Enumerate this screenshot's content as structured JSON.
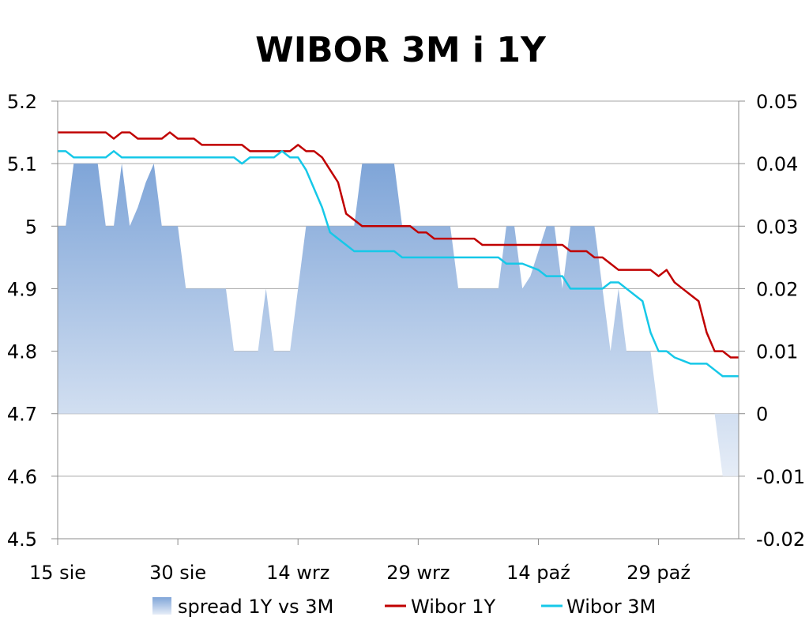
{
  "chart_data": {
    "type": "line",
    "title": "WIBOR 3M i 1Y",
    "x_axis": {
      "ticks": [
        "15 sie",
        "30 sie",
        "14 wrz",
        "29 wrz",
        "14 paź",
        "29 paź"
      ],
      "range": [
        "15 sie",
        "8 lis"
      ]
    },
    "y_left": {
      "min": 4.5,
      "max": 5.2,
      "step": 0.1,
      "ticks": [
        "5.2",
        "5.1",
        "5",
        "4.9",
        "4.8",
        "4.7",
        "4.6",
        "4.5"
      ]
    },
    "y_right": {
      "min": -0.02,
      "max": 0.05,
      "step": 0.01,
      "ticks": [
        "0.05",
        "0.04",
        "0.03",
        "0.02",
        "0.01",
        "0",
        "-0.01",
        "-0.02"
      ]
    },
    "grid": true,
    "legend_position": "bottom",
    "legend": {
      "spread_label": "spread 1Y vs 3M",
      "wibor1y_label": "Wibor 1Y",
      "wibor3m_label": "Wibor 3M"
    },
    "colors": {
      "wibor1y": "#c00000",
      "wibor3m": "#16c8e8",
      "spread_top": "#7fa5d8",
      "spread_bottom": "#e6edf7",
      "grid": "#a6a6a6"
    },
    "series": [
      {
        "name": "Wibor 1Y",
        "axis": "left",
        "x_day": [
          0,
          1,
          2,
          3,
          4,
          5,
          6,
          7,
          8,
          9,
          10,
          11,
          12,
          13,
          14,
          15,
          16,
          17,
          18,
          19,
          20,
          21,
          22,
          23,
          24,
          25,
          26,
          27,
          28,
          29,
          30,
          31,
          32,
          33,
          34,
          35,
          36,
          37,
          38,
          39,
          40,
          41,
          42,
          43,
          44,
          45,
          46,
          47,
          48,
          49,
          50,
          51,
          52,
          53,
          54,
          55,
          56,
          57,
          58,
          59,
          60,
          61,
          62,
          63,
          64,
          65,
          66,
          67,
          68,
          69,
          70,
          71,
          72,
          73,
          74,
          75,
          76,
          77,
          78,
          79,
          80,
          81,
          82,
          83,
          84,
          85
        ],
        "values": [
          5.15,
          5.15,
          5.15,
          5.15,
          5.15,
          5.15,
          5.15,
          5.14,
          5.15,
          5.15,
          5.14,
          5.14,
          5.14,
          5.14,
          5.15,
          5.14,
          5.14,
          5.14,
          5.13,
          5.13,
          5.13,
          5.13,
          5.13,
          5.13,
          5.12,
          5.12,
          5.12,
          5.12,
          5.12,
          5.12,
          5.13,
          5.12,
          5.12,
          5.11,
          5.09,
          5.07,
          5.02,
          5.01,
          5.0,
          5.0,
          5.0,
          5.0,
          5.0,
          5.0,
          5.0,
          4.99,
          4.99,
          4.98,
          4.98,
          4.98,
          4.98,
          4.98,
          4.98,
          4.97,
          4.97,
          4.97,
          4.97,
          4.97,
          4.97,
          4.97,
          4.97,
          4.97,
          4.97,
          4.97,
          4.96,
          4.96,
          4.96,
          4.95,
          4.95,
          4.94,
          4.93,
          4.93,
          4.93,
          4.93,
          4.93,
          4.92,
          4.93,
          4.91,
          4.9,
          4.89,
          4.88,
          4.83,
          4.8,
          4.8,
          4.79,
          4.79
        ]
      },
      {
        "name": "Wibor 3M",
        "axis": "left",
        "x_day": [
          0,
          1,
          2,
          3,
          4,
          5,
          6,
          7,
          8,
          9,
          10,
          11,
          12,
          13,
          14,
          15,
          16,
          17,
          18,
          19,
          20,
          21,
          22,
          23,
          24,
          25,
          26,
          27,
          28,
          29,
          30,
          31,
          32,
          33,
          34,
          35,
          36,
          37,
          38,
          39,
          40,
          41,
          42,
          43,
          44,
          45,
          46,
          47,
          48,
          49,
          50,
          51,
          52,
          53,
          54,
          55,
          56,
          57,
          58,
          59,
          60,
          61,
          62,
          63,
          64,
          65,
          66,
          67,
          68,
          69,
          70,
          71,
          72,
          73,
          74,
          75,
          76,
          77,
          78,
          79,
          80,
          81,
          82,
          83,
          84,
          85
        ],
        "values": [
          5.12,
          5.12,
          5.11,
          5.11,
          5.11,
          5.11,
          5.11,
          5.12,
          5.11,
          5.11,
          5.11,
          5.11,
          5.11,
          5.11,
          5.11,
          5.11,
          5.11,
          5.11,
          5.11,
          5.11,
          5.11,
          5.11,
          5.11,
          5.1,
          5.11,
          5.11,
          5.11,
          5.11,
          5.12,
          5.11,
          5.11,
          5.09,
          5.06,
          5.03,
          4.99,
          4.98,
          4.97,
          4.96,
          4.96,
          4.96,
          4.96,
          4.96,
          4.96,
          4.95,
          4.95,
          4.95,
          4.95,
          4.95,
          4.95,
          4.95,
          4.95,
          4.95,
          4.95,
          4.95,
          4.95,
          4.95,
          4.94,
          4.94,
          4.94,
          4.935,
          4.93,
          4.92,
          4.92,
          4.92,
          4.9,
          4.9,
          4.9,
          4.9,
          4.9,
          4.91,
          4.91,
          4.9,
          4.89,
          4.88,
          4.83,
          4.8,
          4.8,
          4.79,
          4.785,
          4.78,
          4.78,
          4.78,
          4.77,
          4.76,
          4.76,
          4.76
        ]
      },
      {
        "name": "spread 1Y vs 3M",
        "axis": "right",
        "type": "area",
        "x_day": [
          0,
          1,
          2,
          3,
          4,
          5,
          6,
          7,
          8,
          9,
          10,
          11,
          12,
          13,
          14,
          15,
          16,
          17,
          18,
          19,
          20,
          21,
          22,
          23,
          24,
          25,
          26,
          27,
          28,
          29,
          30,
          31,
          32,
          33,
          34,
          35,
          36,
          37,
          38,
          39,
          40,
          41,
          42,
          43,
          44,
          45,
          46,
          47,
          48,
          49,
          50,
          51,
          52,
          53,
          54,
          55,
          56,
          57,
          58,
          59,
          60,
          61,
          62,
          63,
          64,
          65,
          66,
          67,
          68,
          69,
          70,
          71,
          72,
          73,
          74,
          75,
          76,
          77,
          78,
          79,
          80,
          81,
          82,
          83,
          84,
          85
        ],
        "values": [
          0.03,
          0.03,
          0.04,
          0.04,
          0.04,
          0.04,
          0.03,
          0.03,
          0.04,
          0.03,
          0.033,
          0.037,
          0.04,
          0.03,
          0.03,
          0.03,
          0.02,
          0.02,
          0.02,
          0.02,
          0.02,
          0.02,
          0.01,
          0.01,
          0.01,
          0.01,
          0.02,
          0.01,
          0.01,
          0.01,
          0.02,
          0.03,
          0.03,
          0.03,
          0.03,
          0.03,
          0.03,
          0.03,
          0.04,
          0.04,
          0.04,
          0.04,
          0.04,
          0.03,
          0.03,
          0.03,
          0.03,
          0.03,
          0.03,
          0.03,
          0.02,
          0.02,
          0.02,
          0.02,
          0.02,
          0.02,
          0.03,
          0.03,
          0.02,
          0.022,
          0.026,
          0.03,
          0.03,
          0.02,
          0.03,
          0.03,
          0.03,
          0.03,
          0.02,
          0.01,
          0.02,
          0.01,
          0.01,
          0.01,
          0.01,
          0.0,
          0.0,
          0.0,
          0.0,
          0.0,
          0.0,
          0.0,
          0.0,
          -0.01,
          -0.01,
          -0.01
        ]
      }
    ]
  }
}
